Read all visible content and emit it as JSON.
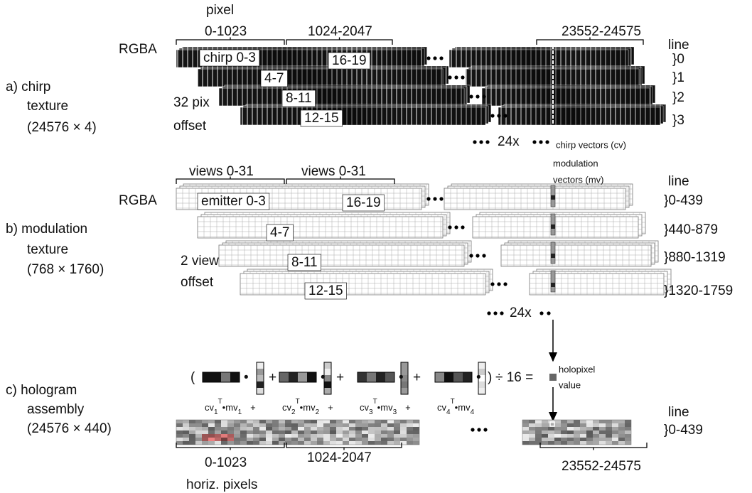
{
  "chirp": {
    "label": [
      "a) chirp",
      "texture",
      "(24576 × 4)"
    ],
    "pixel": "pixel",
    "ranges": [
      "0-1023",
      "1024-2047",
      "23552-24575"
    ],
    "rgba": "RGBA",
    "line": "line",
    "lines": [
      "}0",
      "}1",
      "}2",
      "}3"
    ],
    "offset": [
      "32 pix",
      "offset"
    ],
    "strips": [
      "chirp 0-3",
      "16-19",
      "4-7",
      "8-11",
      "12-15"
    ],
    "repeat": "24x",
    "vectors": "chirp vectors (cv)"
  },
  "modulation": {
    "label": [
      "b) modulation",
      "texture",
      "(768 × 1760)"
    ],
    "ranges": [
      "views 0-31",
      "views 0-31"
    ],
    "rgba": "RGBA",
    "line": "line",
    "lines": [
      "}0-439",
      "}440-879",
      "}880-1319",
      "}1320-1759"
    ],
    "offset": [
      "2 view",
      "offset"
    ],
    "strips": [
      "emitter 0-3",
      "16-19",
      "4-7",
      "8-11",
      "12-15"
    ],
    "repeat": "24x",
    "vectors": [
      "modulation",
      "vectors (mv)"
    ]
  },
  "hologram": {
    "label": [
      "c) hologram",
      "assembly",
      "(24576 × 440)"
    ],
    "formula": {
      "open": "(",
      "close": ")",
      "op": "•",
      "plus": "+",
      "divide": "÷ 16 =",
      "result": [
        "holopixel",
        "value"
      ],
      "terms": [
        {
          "cv": "cv",
          "cv_index": "1",
          "transpose": "T",
          "mv": "mv",
          "mv_index": "1"
        },
        {
          "cv": "cv",
          "cv_index": "2",
          "transpose": "T",
          "mv": "mv",
          "mv_index": "2"
        },
        {
          "cv": "cv",
          "cv_index": "3",
          "transpose": "T",
          "mv": "mv",
          "mv_index": "3"
        },
        {
          "cv": "cv",
          "cv_index": "4",
          "transpose": "T",
          "mv": "mv",
          "mv_index": "4"
        }
      ]
    },
    "line": "line",
    "lines": [
      "}0-439"
    ],
    "ranges": [
      "0-1023",
      "1024-2047",
      "23552-24575"
    ],
    "axis": "horiz. pixels"
  }
}
